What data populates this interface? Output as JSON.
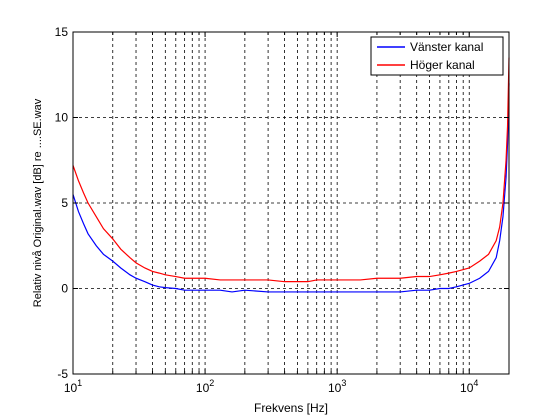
{
  "chart_data": {
    "type": "line",
    "title": "",
    "xlabel": "Frekvens [Hz]",
    "ylabel": "Relativ nivå Original.wav [dB] re ....SE.wav",
    "xscale": "log",
    "xlim": [
      10,
      20000
    ],
    "ylim": [
      -5,
      15
    ],
    "grid": "dashed",
    "legend_position": "top-right",
    "y_ticks": [
      -5,
      0,
      5,
      10,
      15
    ],
    "y_tick_labels": [
      "-5",
      "0",
      "5",
      "10",
      "15"
    ],
    "x_major_ticks": [
      10,
      100,
      1000,
      10000
    ],
    "x_tick_labels": [
      {
        "base": "10",
        "exp": "1"
      },
      {
        "base": "10",
        "exp": "2"
      },
      {
        "base": "10",
        "exp": "3"
      },
      {
        "base": "10",
        "exp": "4"
      }
    ],
    "series": [
      {
        "name": "Vänster kanal",
        "color": "#0000ff",
        "x": [
          10,
          11,
          12,
          13,
          15,
          17,
          20,
          23,
          27,
          30,
          35,
          40,
          45,
          50,
          60,
          70,
          80,
          100,
          130,
          160,
          200,
          300,
          400,
          500,
          600,
          700,
          800,
          1000,
          1500,
          2000,
          3000,
          4000,
          5000,
          6000,
          7000,
          8000,
          10000,
          12000,
          14000,
          16000,
          17000,
          18000,
          19000,
          19500,
          20000
        ],
        "y": [
          5.5,
          4.5,
          3.8,
          3.2,
          2.5,
          2.0,
          1.6,
          1.2,
          0.8,
          0.6,
          0.4,
          0.2,
          0.1,
          0.05,
          0.0,
          -0.1,
          -0.1,
          -0.1,
          -0.1,
          -0.2,
          -0.1,
          -0.2,
          -0.2,
          -0.2,
          -0.2,
          -0.2,
          -0.2,
          -0.2,
          -0.2,
          -0.2,
          -0.2,
          -0.1,
          -0.1,
          0.0,
          0.0,
          0.1,
          0.3,
          0.6,
          1.0,
          1.8,
          2.8,
          4.2,
          6.5,
          8.5,
          12.0
        ]
      },
      {
        "name": "Höger kanal",
        "color": "#ff0000",
        "x": [
          10,
          11,
          12,
          13,
          15,
          17,
          20,
          23,
          27,
          30,
          35,
          40,
          45,
          50,
          60,
          70,
          80,
          100,
          130,
          160,
          200,
          300,
          400,
          500,
          600,
          700,
          800,
          1000,
          1500,
          2000,
          3000,
          4000,
          5000,
          6000,
          7000,
          8000,
          10000,
          12000,
          14000,
          16000,
          17000,
          18000,
          19000,
          19500,
          20000
        ],
        "y": [
          7.2,
          6.3,
          5.6,
          5.0,
          4.2,
          3.5,
          2.9,
          2.3,
          1.8,
          1.5,
          1.2,
          1.0,
          0.9,
          0.8,
          0.7,
          0.6,
          0.6,
          0.6,
          0.5,
          0.5,
          0.5,
          0.5,
          0.4,
          0.4,
          0.4,
          0.5,
          0.5,
          0.5,
          0.5,
          0.6,
          0.6,
          0.7,
          0.7,
          0.8,
          0.9,
          1.0,
          1.2,
          1.6,
          2.0,
          2.8,
          3.6,
          5.0,
          7.5,
          9.5,
          13.5
        ]
      }
    ]
  }
}
